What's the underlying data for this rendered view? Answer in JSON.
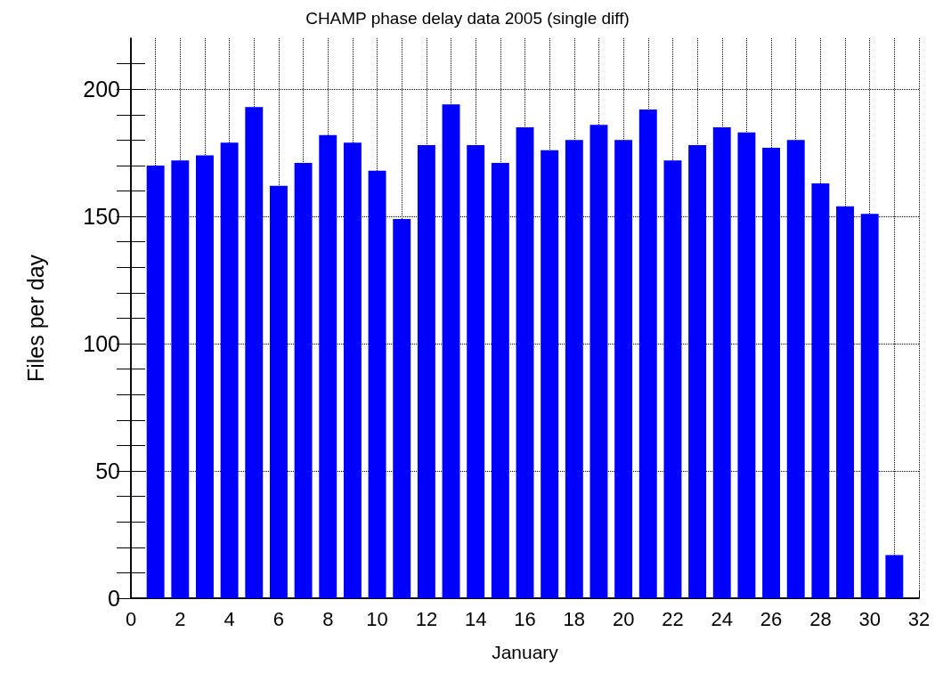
{
  "chart_data": {
    "type": "bar",
    "title": "CHAMP phase delay data 2005 (single diff)",
    "xlabel": "January",
    "ylabel": "Files per day",
    "x": [
      1,
      2,
      3,
      4,
      5,
      6,
      7,
      8,
      9,
      10,
      11,
      12,
      13,
      14,
      15,
      16,
      17,
      18,
      19,
      20,
      21,
      22,
      23,
      24,
      25,
      26,
      27,
      28,
      29,
      30,
      31
    ],
    "values": [
      170,
      172,
      174,
      179,
      193,
      162,
      171,
      182,
      179,
      168,
      149,
      178,
      194,
      178,
      171,
      185,
      176,
      180,
      186,
      180,
      192,
      172,
      178,
      185,
      183,
      177,
      180,
      163,
      154,
      151,
      17
    ],
    "color": "#0000ff",
    "xlim": [
      0,
      32
    ],
    "xticks": [
      0,
      {
        "value": 1,
        "label": null
      },
      2,
      {
        "value": 3,
        "label": null
      },
      4,
      {
        "value": 5,
        "label": null
      },
      6,
      {
        "value": 7,
        "label": null
      },
      8,
      {
        "value": 9,
        "label": null
      },
      10,
      {
        "value": 11,
        "label": null
      },
      12,
      {
        "value": 13,
        "label": null
      },
      14,
      {
        "value": 15,
        "label": null
      },
      16,
      {
        "value": 17,
        "label": null
      },
      18,
      {
        "value": 19,
        "label": null
      },
      20,
      {
        "value": 21,
        "label": null
      },
      22,
      {
        "value": 23,
        "label": null
      },
      24,
      {
        "value": 25,
        "label": null
      },
      26,
      {
        "value": 27,
        "label": null
      },
      28,
      {
        "value": 29,
        "label": null
      },
      30,
      {
        "value": 31,
        "label": null
      },
      32
    ],
    "ylim": [
      0,
      220
    ],
    "yticks": [
      0,
      {
        "value": 10,
        "label": null
      },
      {
        "value": 20,
        "label": null
      },
      {
        "value": 30,
        "label": null
      },
      {
        "value": 40,
        "label": null
      },
      50,
      {
        "value": 60,
        "label": null
      },
      {
        "value": 70,
        "label": null
      },
      {
        "value": 80,
        "label": null
      },
      {
        "value": 90,
        "label": null
      },
      100,
      {
        "value": 110,
        "label": null
      },
      {
        "value": 120,
        "label": null
      },
      {
        "value": 130,
        "label": null
      },
      {
        "value": 140,
        "label": null
      },
      150,
      {
        "value": 160,
        "label": null
      },
      {
        "value": 170,
        "label": null
      },
      {
        "value": 180,
        "label": null
      },
      {
        "value": 190,
        "label": null
      },
      200,
      {
        "value": 210,
        "label": null
      }
    ],
    "grid": true
  }
}
